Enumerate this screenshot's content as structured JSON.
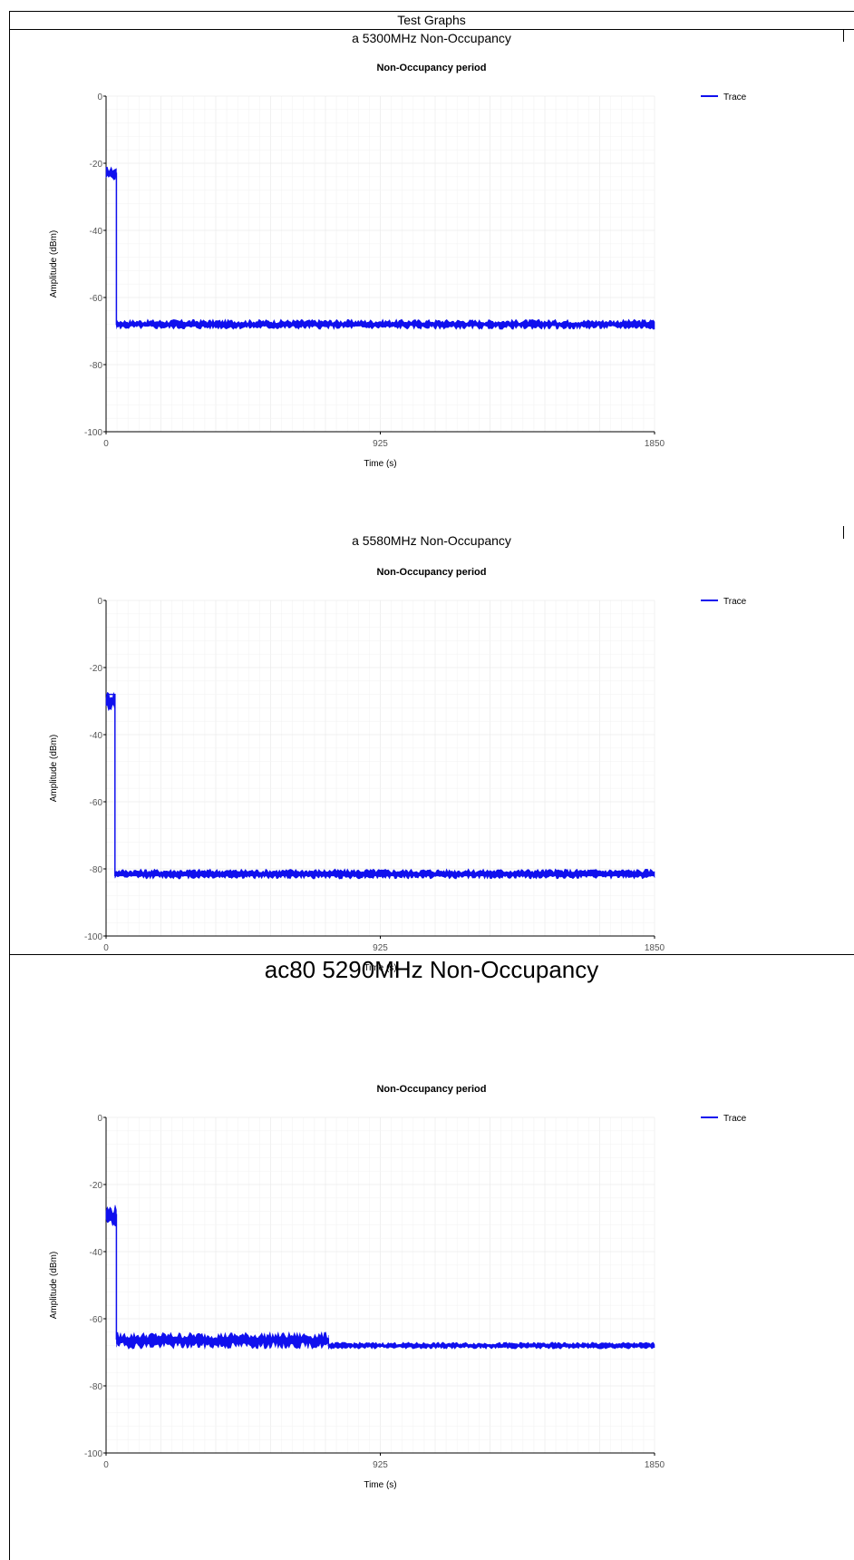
{
  "page": {
    "title": "Test Graphs"
  },
  "sections": [
    {
      "title": "a 5300MHz Non-Occupancy"
    },
    {
      "title": "a 5580MHz Non-Occupancy"
    },
    {
      "title": "ac80 5290MHz Non-Occupancy"
    }
  ],
  "colors": {
    "trace": "#1010ee",
    "grid_major": "#e6e6e6",
    "grid_minor": "#f3f3f3",
    "axis": "#000000"
  },
  "chart_data": [
    {
      "type": "line",
      "title": "Non-Occupancy period",
      "xlabel": "Time (s)",
      "ylabel": "Amplitude (dBm)",
      "xlim": [
        0,
        1850
      ],
      "ylim": [
        -100,
        0
      ],
      "xticks": [
        "0",
        "925",
        "1850"
      ],
      "yticks": [
        "0",
        "-20",
        "-40",
        "-60",
        "-80",
        "-100"
      ],
      "grid": true,
      "legend_position": "top-right",
      "series": [
        {
          "name": "Trace",
          "x": [
            0,
            35,
            35,
            1850
          ],
          "y": [
            -23,
            -23,
            -68,
            -68
          ],
          "band_low": [
            -25,
            -25,
            -69.5,
            -69.5
          ],
          "band_high": [
            -21,
            -21,
            -66.5,
            -66.5
          ]
        }
      ]
    },
    {
      "type": "line",
      "title": "Non-Occupancy period",
      "xlabel": "Time (s)",
      "ylabel": "Amplitude (dBm)",
      "xlim": [
        0,
        1850
      ],
      "ylim": [
        -100,
        0
      ],
      "xticks": [
        "0",
        "925",
        "1850"
      ],
      "yticks": [
        "0",
        "-20",
        "-40",
        "-60",
        "-80",
        "-100"
      ],
      "grid": true,
      "legend_position": "top-right",
      "series": [
        {
          "name": "Trace",
          "x": [
            0,
            30,
            30,
            1850
          ],
          "y": [
            -28,
            -28,
            -82,
            -82
          ],
          "band_low": [
            -33,
            -33,
            -83,
            -83
          ],
          "band_high": [
            -27,
            -27,
            -80,
            -80
          ]
        }
      ]
    },
    {
      "type": "line",
      "title": "Non-Occupancy period",
      "xlabel": "Time (s)",
      "ylabel": "Amplitude (dBm)",
      "xlim": [
        0,
        1850
      ],
      "ylim": [
        -100,
        0
      ],
      "xticks": [
        "0",
        "925",
        "1850"
      ],
      "yticks": [
        "0",
        "-20",
        "-40",
        "-60",
        "-80",
        "-100"
      ],
      "grid": true,
      "legend_position": "top-right",
      "series": [
        {
          "name": "Trace",
          "x": [
            0,
            35,
            35,
            750,
            750,
            1850
          ],
          "y": [
            -29,
            -29,
            -66,
            -66,
            -68,
            -68
          ],
          "band_low": [
            -33,
            -33,
            -69,
            -69,
            -69,
            -69
          ],
          "band_high": [
            -26,
            -26,
            -64,
            -64,
            -67,
            -67
          ]
        }
      ]
    }
  ]
}
